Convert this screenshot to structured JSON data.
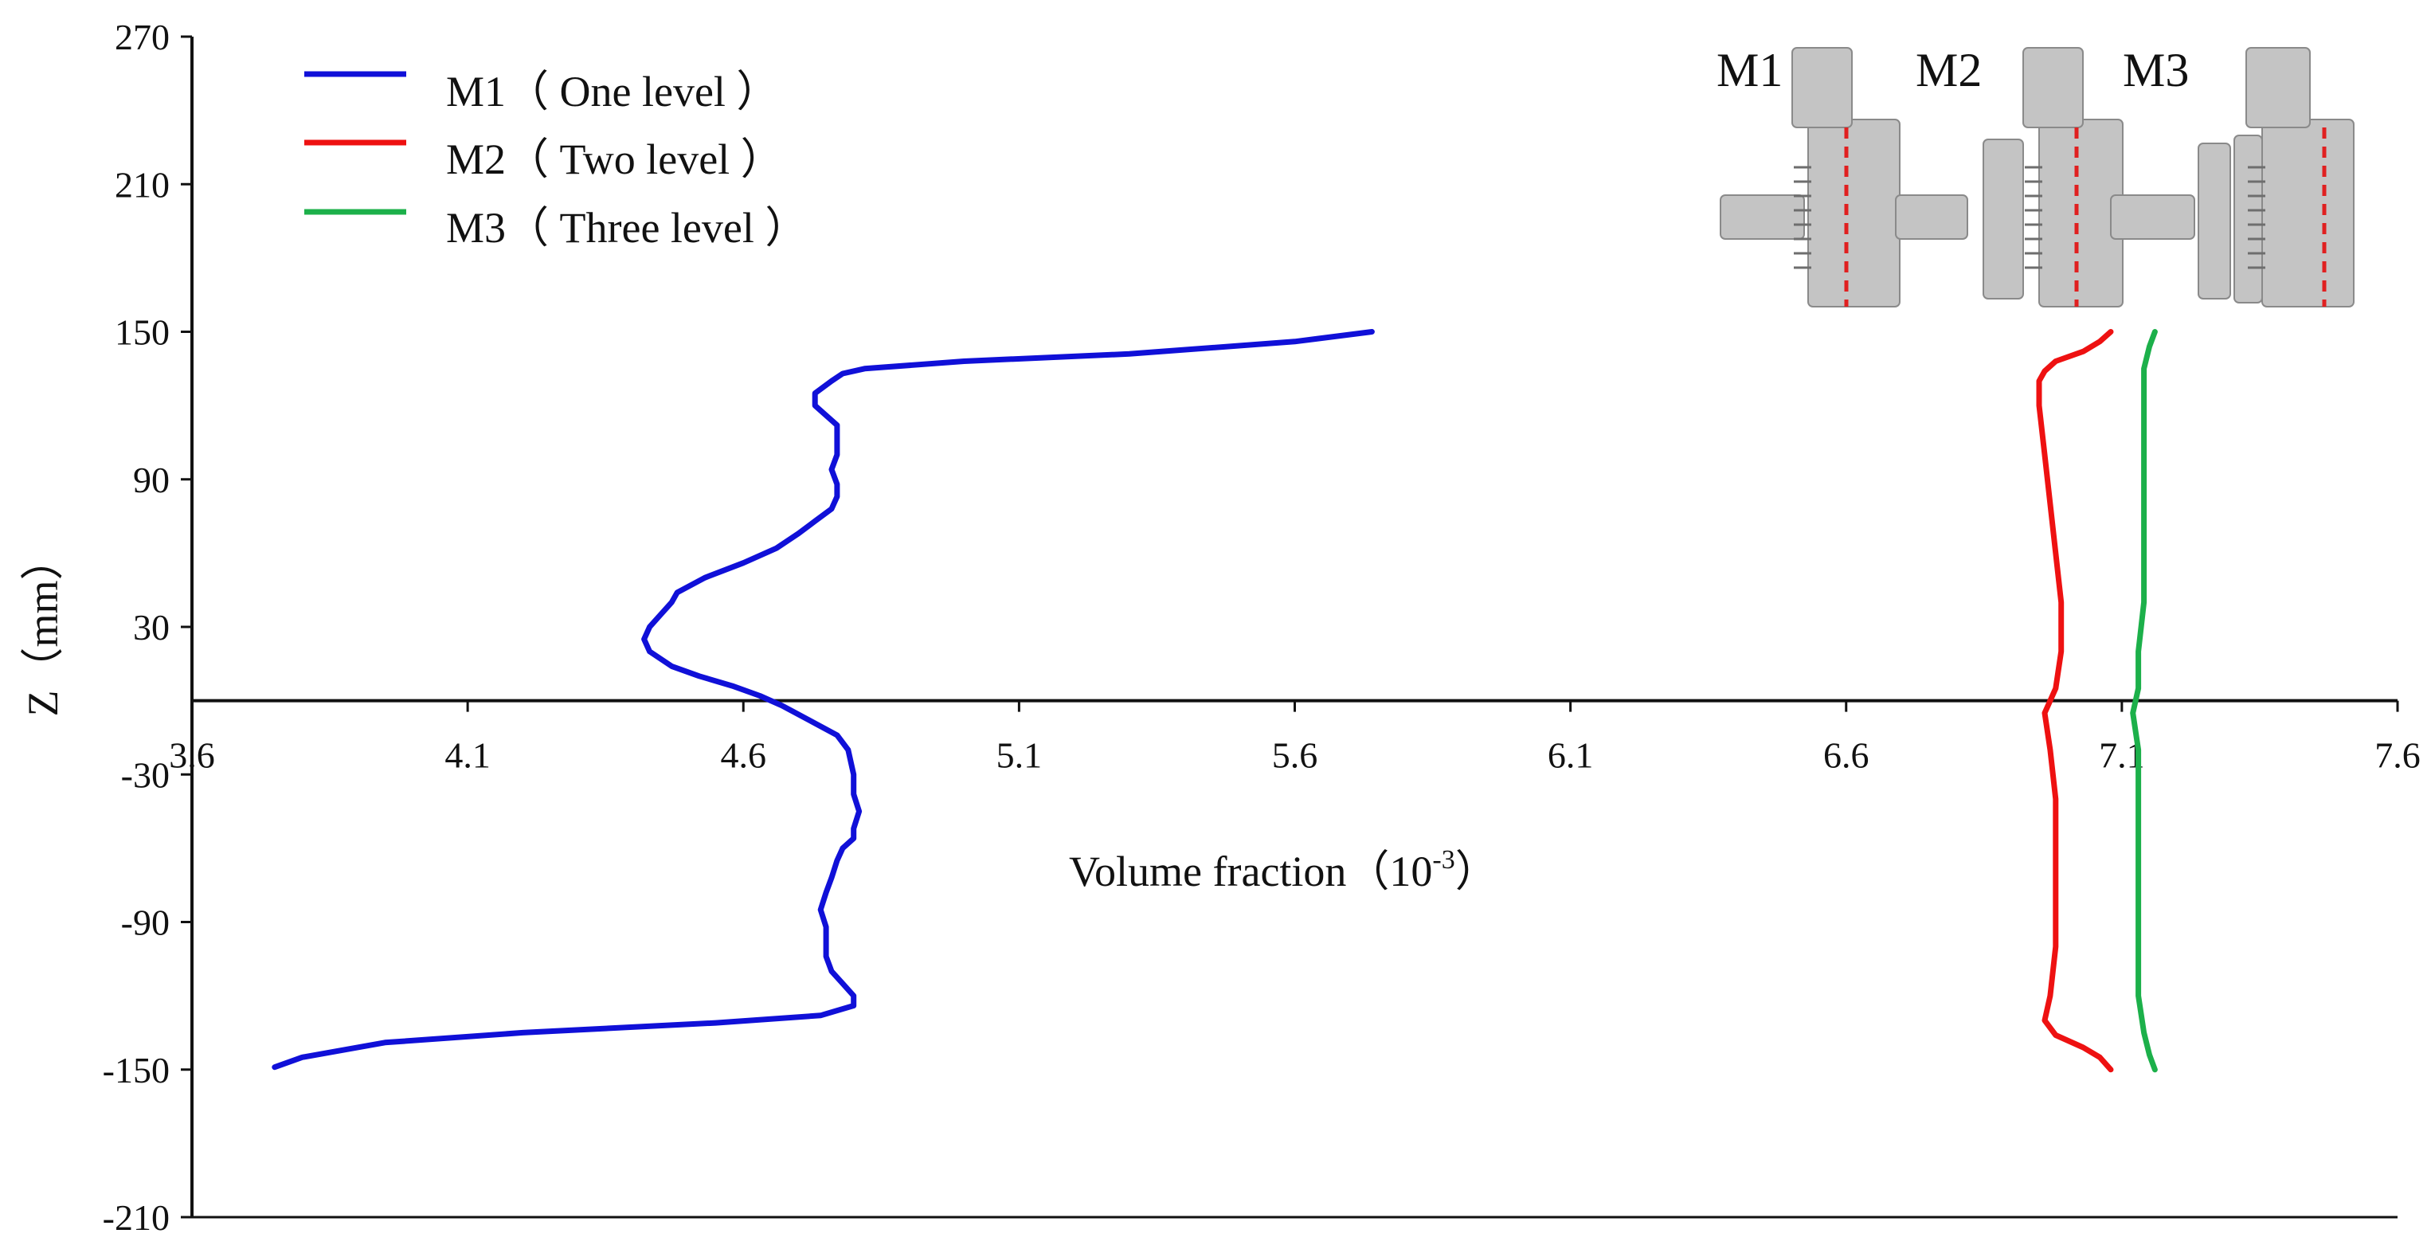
{
  "chart_data": {
    "type": "line",
    "xlabel": "Volume fraction（10",
    "xlabel_sup": "-3",
    "xlabel_close": "）",
    "ylabel": "Z（mm）",
    "xlim": [
      3.6,
      7.6
    ],
    "ylim": [
      -210,
      270
    ],
    "x_ticks": [
      "3.6",
      "4.1",
      "4.6",
      "5.1",
      "5.6",
      "6.1",
      "6.6",
      "7.1",
      "7.6"
    ],
    "y_ticks": [
      "270",
      "210",
      "150",
      "90",
      "30",
      "-30",
      "-90",
      "-150",
      "-210"
    ],
    "x_axis_at_y": 0,
    "legend_position": "top-left",
    "grid": false,
    "series": [
      {
        "name": "M1（ One level ）",
        "color": "#1010d8",
        "points": [
          [
            5.74,
            150
          ],
          [
            5.6,
            146
          ],
          [
            5.3,
            141
          ],
          [
            5.0,
            138
          ],
          [
            4.82,
            135
          ],
          [
            4.78,
            133
          ],
          [
            4.76,
            130
          ],
          [
            4.73,
            125
          ],
          [
            4.73,
            120
          ],
          [
            4.75,
            116
          ],
          [
            4.77,
            112
          ],
          [
            4.77,
            106
          ],
          [
            4.77,
            100
          ],
          [
            4.76,
            94
          ],
          [
            4.77,
            88
          ],
          [
            4.77,
            83
          ],
          [
            4.76,
            78
          ],
          [
            4.73,
            73
          ],
          [
            4.7,
            68
          ],
          [
            4.66,
            62
          ],
          [
            4.6,
            56
          ],
          [
            4.53,
            50
          ],
          [
            4.48,
            44
          ],
          [
            4.47,
            40
          ],
          [
            4.45,
            35
          ],
          [
            4.43,
            30
          ],
          [
            4.42,
            25
          ],
          [
            4.43,
            20
          ],
          [
            4.47,
            14
          ],
          [
            4.52,
            10
          ],
          [
            4.58,
            6
          ],
          [
            4.63,
            2
          ],
          [
            4.67,
            -2
          ],
          [
            4.72,
            -8
          ],
          [
            4.77,
            -14
          ],
          [
            4.79,
            -20
          ],
          [
            4.8,
            -30
          ],
          [
            4.8,
            -38
          ],
          [
            4.81,
            -45
          ],
          [
            4.8,
            -52
          ],
          [
            4.8,
            -56
          ],
          [
            4.78,
            -60
          ],
          [
            4.77,
            -65
          ],
          [
            4.76,
            -72
          ],
          [
            4.75,
            -78
          ],
          [
            4.74,
            -85
          ],
          [
            4.75,
            -92
          ],
          [
            4.75,
            -98
          ],
          [
            4.75,
            -104
          ],
          [
            4.76,
            -110
          ],
          [
            4.78,
            -115
          ],
          [
            4.8,
            -120
          ],
          [
            4.8,
            -124
          ],
          [
            4.74,
            -128
          ],
          [
            4.55,
            -131
          ],
          [
            4.2,
            -135
          ],
          [
            3.95,
            -139
          ],
          [
            3.8,
            -145
          ],
          [
            3.75,
            -149
          ]
        ]
      },
      {
        "name": "M2（ Two level ）",
        "color": "#ee1111",
        "points": [
          [
            7.08,
            150
          ],
          [
            7.06,
            146
          ],
          [
            7.03,
            142
          ],
          [
            6.98,
            138
          ],
          [
            6.96,
            134
          ],
          [
            6.95,
            130
          ],
          [
            6.95,
            120
          ],
          [
            6.96,
            100
          ],
          [
            6.97,
            80
          ],
          [
            6.98,
            60
          ],
          [
            6.99,
            40
          ],
          [
            6.99,
            20
          ],
          [
            6.98,
            5
          ],
          [
            6.96,
            -5
          ],
          [
            6.97,
            -20
          ],
          [
            6.98,
            -40
          ],
          [
            6.98,
            -60
          ],
          [
            6.98,
            -80
          ],
          [
            6.98,
            -100
          ],
          [
            6.97,
            -120
          ],
          [
            6.96,
            -130
          ],
          [
            6.98,
            -136
          ],
          [
            7.03,
            -141
          ],
          [
            7.06,
            -145
          ],
          [
            7.08,
            -150
          ]
        ]
      },
      {
        "name": "M3（ Three level ）",
        "color": "#1cb04a",
        "points": [
          [
            7.16,
            150
          ],
          [
            7.15,
            144
          ],
          [
            7.14,
            135
          ],
          [
            7.14,
            120
          ],
          [
            7.14,
            100
          ],
          [
            7.14,
            80
          ],
          [
            7.14,
            60
          ],
          [
            7.14,
            40
          ],
          [
            7.13,
            20
          ],
          [
            7.13,
            5
          ],
          [
            7.12,
            -5
          ],
          [
            7.13,
            -20
          ],
          [
            7.13,
            -40
          ],
          [
            7.13,
            -60
          ],
          [
            7.13,
            -80
          ],
          [
            7.13,
            -100
          ],
          [
            7.13,
            -120
          ],
          [
            7.14,
            -135
          ],
          [
            7.15,
            -144
          ],
          [
            7.16,
            -150
          ]
        ]
      }
    ],
    "inset": {
      "labels": [
        "M1",
        "M2",
        "M3"
      ],
      "levels": [
        1,
        2,
        3
      ],
      "body_color": "#c4c4c4",
      "marker_color": "#e02020"
    }
  }
}
